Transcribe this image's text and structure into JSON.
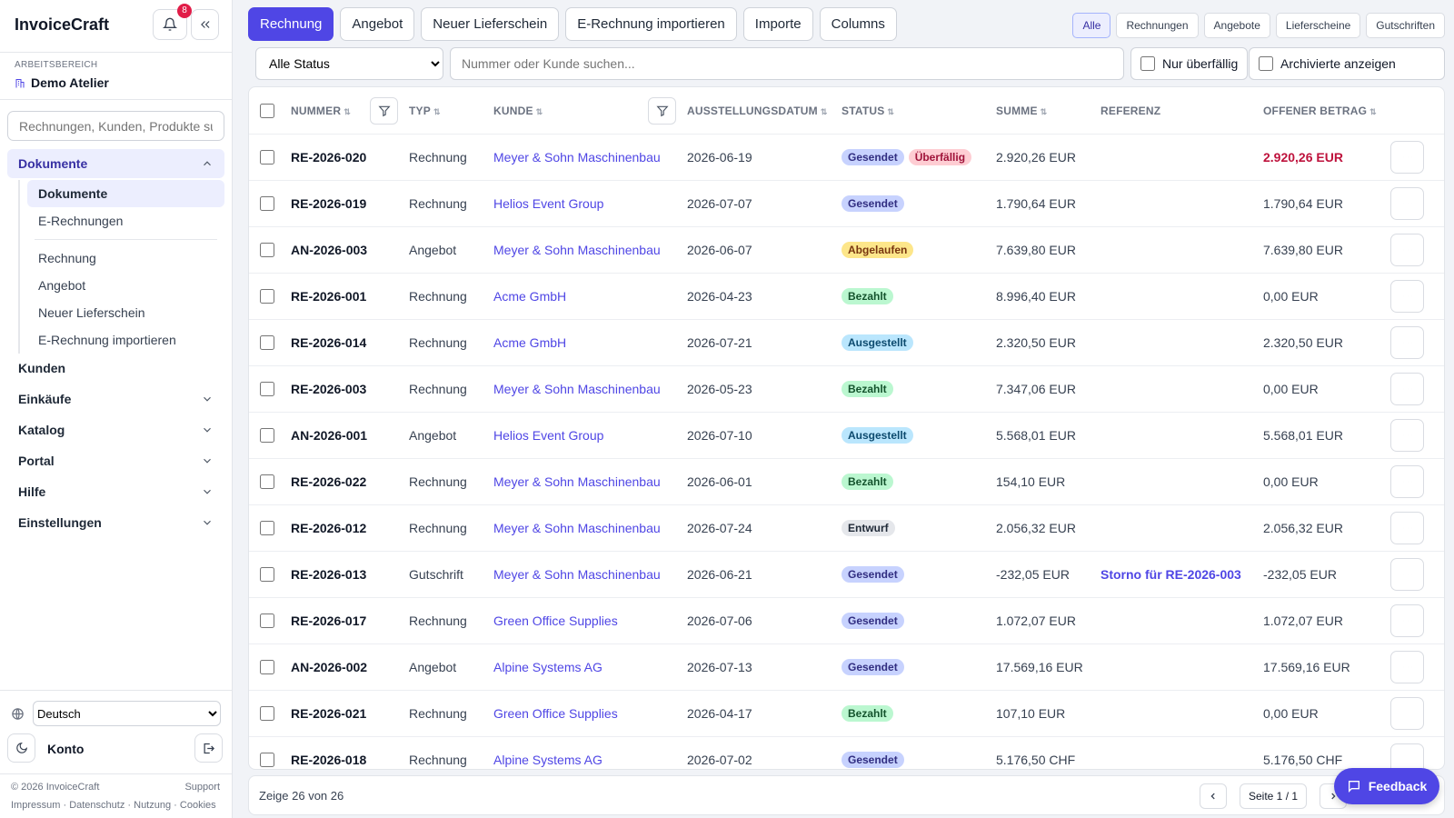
{
  "sidebar": {
    "brand": "InvoiceCraft",
    "notification_count": "8",
    "workspace_label": "ARBEITSBEREICH",
    "workspace": "Demo Atelier",
    "search_placeholder": "Rechnungen, Kunden, Produkte su",
    "nav": [
      {
        "label": "Dokumente",
        "active": true,
        "expanded": true,
        "children": [
          {
            "label": "Dokumente",
            "active": true
          },
          {
            "label": "E-Rechnungen"
          }
        ],
        "actions": [
          "Rechnung",
          "Angebot",
          "Neuer Lieferschein",
          "E-Rechnung importieren"
        ]
      },
      {
        "label": "Kunden"
      },
      {
        "label": "Einkäufe",
        "collapsible": true
      },
      {
        "label": "Katalog",
        "collapsible": true
      },
      {
        "label": "Portal",
        "collapsible": true
      },
      {
        "label": "Hilfe",
        "collapsible": true
      },
      {
        "label": "Einstellungen",
        "collapsible": true
      }
    ],
    "language": "Deutsch",
    "account": "Konto",
    "copyright": "© 2026 InvoiceCraft",
    "support": "Support",
    "legal_links": [
      "Impressum",
      "Datenschutz",
      "Nutzung",
      "Cookies"
    ]
  },
  "toolbar": {
    "actions": [
      {
        "label": "Rechnung",
        "primary": true
      },
      {
        "label": "Angebot"
      },
      {
        "label": "Neuer Lieferschein"
      },
      {
        "label": "E-Rechnung importieren"
      },
      {
        "label": "Importe"
      },
      {
        "label": "Columns"
      }
    ],
    "type_filters": [
      {
        "label": "Alle",
        "active": true
      },
      {
        "label": "Rechnungen"
      },
      {
        "label": "Angebote"
      },
      {
        "label": "Lieferscheine"
      },
      {
        "label": "Gutschriften"
      }
    ],
    "status_select": "Alle Status",
    "search_placeholder": "Nummer oder Kunde suchen...",
    "checkboxes": [
      "Nur überfällig",
      "Archivierte anzeigen"
    ]
  },
  "table": {
    "columns": [
      {
        "label": "NUMMER",
        "sortable": true,
        "filter": true
      },
      {
        "label": "TYP",
        "sortable": true
      },
      {
        "label": "KUNDE",
        "sortable": true,
        "filter": true
      },
      {
        "label": "AUSSTELLUNGSDATUM",
        "sortable": true
      },
      {
        "label": "STATUS",
        "sortable": true
      },
      {
        "label": "SUMME",
        "sortable": true
      },
      {
        "label": "REFERENZ"
      },
      {
        "label": "OFFENER BETRAG",
        "sortable": true
      }
    ],
    "tones": {
      "indigo": {
        "bg": "#c7d2fe",
        "fg": "#312e81"
      },
      "rose": {
        "bg": "#fecdd3",
        "fg": "#9f1239"
      },
      "amber": {
        "bg": "#fde68a",
        "fg": "#78350f"
      },
      "green": {
        "bg": "#bbf7d0",
        "fg": "#14532d"
      },
      "sky": {
        "bg": "#bae6fd",
        "fg": "#0c4a6e"
      },
      "gray": {
        "bg": "#e5e7eb",
        "fg": "#1f2937"
      }
    },
    "rows": [
      {
        "number": "RE-2026-020",
        "type": "Rechnung",
        "customer": "Meyer & Sohn Maschinenbau",
        "date": "2026-06-19",
        "statuses": [
          {
            "text": "Gesendet",
            "tone": "indigo"
          },
          {
            "text": "Überfällig",
            "tone": "rose"
          }
        ],
        "total": "2.920,26 EUR",
        "open": "2.920,26 EUR",
        "open_color": "#be123c"
      },
      {
        "number": "RE-2026-019",
        "type": "Rechnung",
        "customer": "Helios Event Group",
        "date": "2026-07-07",
        "statuses": [
          {
            "text": "Gesendet",
            "tone": "indigo"
          }
        ],
        "total": "1.790,64 EUR",
        "open": "1.790,64 EUR"
      },
      {
        "number": "AN-2026-003",
        "type": "Angebot",
        "customer": "Meyer & Sohn Maschinenbau",
        "date": "2026-06-07",
        "statuses": [
          {
            "text": "Abgelaufen",
            "tone": "amber"
          }
        ],
        "total": "7.639,80 EUR",
        "open": "7.639,80 EUR"
      },
      {
        "number": "RE-2026-001",
        "type": "Rechnung",
        "customer": "Acme GmbH",
        "date": "2026-04-23",
        "statuses": [
          {
            "text": "Bezahlt",
            "tone": "green"
          }
        ],
        "total": "8.996,40 EUR",
        "open": "0,00 EUR"
      },
      {
        "number": "RE-2026-014",
        "type": "Rechnung",
        "customer": "Acme GmbH",
        "date": "2026-07-21",
        "statuses": [
          {
            "text": "Ausgestellt",
            "tone": "sky"
          }
        ],
        "total": "2.320,50 EUR",
        "open": "2.320,50 EUR"
      },
      {
        "number": "RE-2026-003",
        "type": "Rechnung",
        "customer": "Meyer & Sohn Maschinenbau",
        "date": "2026-05-23",
        "statuses": [
          {
            "text": "Bezahlt",
            "tone": "green"
          }
        ],
        "total": "7.347,06 EUR",
        "open": "0,00 EUR"
      },
      {
        "number": "AN-2026-001",
        "type": "Angebot",
        "customer": "Helios Event Group",
        "date": "2026-07-10",
        "statuses": [
          {
            "text": "Ausgestellt",
            "tone": "sky"
          }
        ],
        "total": "5.568,01 EUR",
        "open": "5.568,01 EUR"
      },
      {
        "number": "RE-2026-022",
        "type": "Rechnung",
        "customer": "Meyer & Sohn Maschinenbau",
        "date": "2026-06-01",
        "statuses": [
          {
            "text": "Bezahlt",
            "tone": "green"
          }
        ],
        "total": "154,10 EUR",
        "open": "0,00 EUR"
      },
      {
        "number": "RE-2026-012",
        "type": "Rechnung",
        "customer": "Meyer & Sohn Maschinenbau",
        "date": "2026-07-24",
        "statuses": [
          {
            "text": "Entwurf",
            "tone": "gray"
          }
        ],
        "total": "2.056,32 EUR",
        "open": "2.056,32 EUR"
      },
      {
        "number": "RE-2026-013",
        "type": "Gutschrift",
        "customer": "Meyer & Sohn Maschinenbau",
        "date": "2026-06-21",
        "statuses": [
          {
            "text": "Gesendet",
            "tone": "indigo"
          }
        ],
        "total": "-232,05 EUR",
        "reference": "Storno für RE-2026-003",
        "open": "-232,05 EUR"
      },
      {
        "number": "RE-2026-017",
        "type": "Rechnung",
        "customer": "Green Office Supplies",
        "date": "2026-07-06",
        "statuses": [
          {
            "text": "Gesendet",
            "tone": "indigo"
          }
        ],
        "total": "1.072,07 EUR",
        "open": "1.072,07 EUR"
      },
      {
        "number": "AN-2026-002",
        "type": "Angebot",
        "customer": "Alpine Systems AG",
        "date": "2026-07-13",
        "statuses": [
          {
            "text": "Gesendet",
            "tone": "indigo"
          }
        ],
        "total": "17.569,16 EUR",
        "open": "17.569,16 EUR"
      },
      {
        "number": "RE-2026-021",
        "type": "Rechnung",
        "customer": "Green Office Supplies",
        "date": "2026-04-17",
        "statuses": [
          {
            "text": "Bezahlt",
            "tone": "green"
          }
        ],
        "total": "107,10 EUR",
        "open": "0,00 EUR"
      },
      {
        "number": "RE-2026-018",
        "type": "Rechnung",
        "customer": "Alpine Systems AG",
        "date": "2026-07-02",
        "statuses": [
          {
            "text": "Gesendet",
            "tone": "indigo"
          }
        ],
        "total": "5.176,50 CHF",
        "open": "5.176,50 CHF"
      }
    ]
  },
  "footer": {
    "count": "Zeige 26 von 26",
    "page": "Seite 1 / 1"
  },
  "feedback": "Feedback"
}
